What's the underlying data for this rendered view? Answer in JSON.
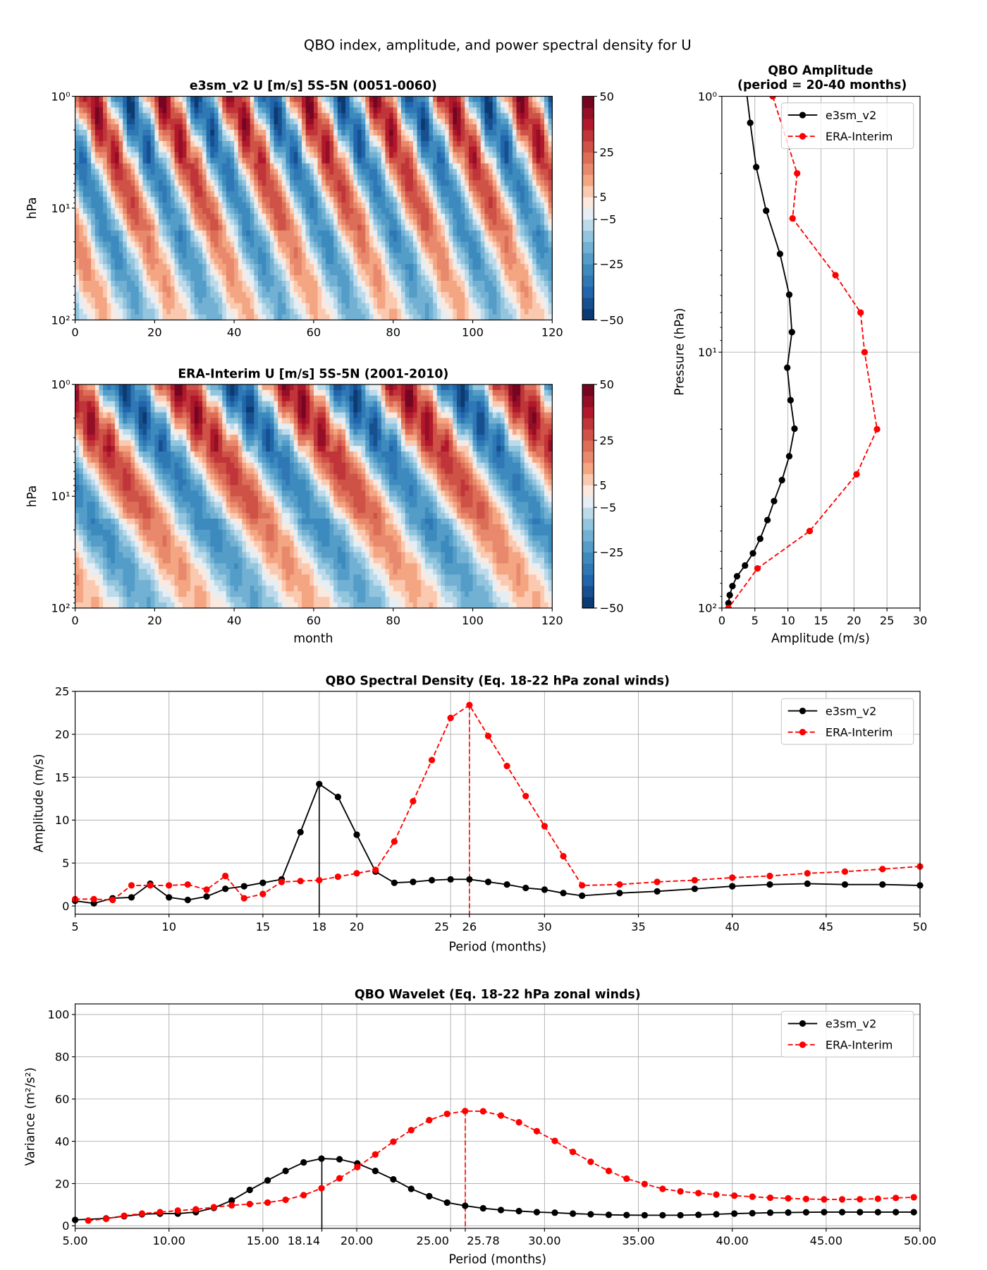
{
  "suptitle": "QBO index, amplitude, and power spectral density for U",
  "chart_data": [
    {
      "id": "e3sm_hov",
      "type": "heatmap",
      "title": "e3sm_v2 U [m/s] 5S-5N (0051-0060)",
      "xlabel": "",
      "ylabel": "hPa",
      "xlim": [
        0,
        120
      ],
      "ylim": [
        100,
        1
      ],
      "yscale": "log",
      "x_ticks": [
        "0",
        "20",
        "40",
        "60",
        "80",
        "100",
        "120"
      ],
      "y_ticks": [
        "10⁰",
        "10¹",
        "10²"
      ],
      "colorbar_ticks": [
        "50",
        "25",
        "5",
        "−5",
        "−25",
        "−50"
      ],
      "colorbar_range": [
        -50,
        50
      ],
      "colorbar_step": 5,
      "approx_period_months": 18
    },
    {
      "id": "era_hov",
      "type": "heatmap",
      "title": "ERA-Interim U [m/s] 5S-5N (2001-2010)",
      "xlabel": "month",
      "ylabel": "hPa",
      "xlim": [
        0,
        120
      ],
      "ylim": [
        100,
        1
      ],
      "yscale": "log",
      "x_ticks": [
        "0",
        "20",
        "40",
        "60",
        "80",
        "100",
        "120"
      ],
      "y_ticks": [
        "10⁰",
        "10¹",
        "10²"
      ],
      "colorbar_ticks": [
        "50",
        "25",
        "5",
        "−5",
        "−25",
        "−50"
      ],
      "colorbar_range": [
        -50,
        50
      ],
      "colorbar_step": 5,
      "approx_period_months": 28
    },
    {
      "id": "amplitude",
      "type": "line",
      "title_line1": "QBO Amplitude",
      "title_line2": "(period = 20-40 months)",
      "xlabel": "Amplitude (m/s)",
      "ylabel": "Pressure (hPa)",
      "xlim": [
        0,
        30
      ],
      "ylim": [
        100,
        1
      ],
      "yscale": "log",
      "x_ticks": [
        "0",
        "5",
        "10",
        "15",
        "20",
        "25",
        "30"
      ],
      "y_ticks": [
        "10⁰",
        "10¹",
        "10²"
      ],
      "legend": "top-right",
      "series": [
        {
          "name": "e3sm_v2",
          "color": "#000000",
          "style": "solid",
          "pressure": [
            1.27,
            1.89,
            2.8,
            4.13,
            5.96,
            8.35,
            11.5,
            15.4,
            19.9,
            25.5,
            31.6,
            38.2,
            45.3,
            53.6,
            61.1,
            68.2,
            75.1,
            82.0,
            89.0,
            95.7
          ],
          "amplitude": [
            4.3,
            5.2,
            6.7,
            8.8,
            10.2,
            10.6,
            9.9,
            10.4,
            11.0,
            10.2,
            9.1,
            7.9,
            6.9,
            5.8,
            4.7,
            3.5,
            2.3,
            1.6,
            1.2,
            1.0
          ]
        },
        {
          "name": "ERA-Interim",
          "color": "#ff0000",
          "style": "dashed",
          "pressure": [
            1,
            2,
            3,
            5,
            7,
            10,
            20,
            30,
            50,
            70,
            100
          ],
          "amplitude": [
            7.7,
            11.4,
            10.7,
            17.2,
            21.0,
            21.6,
            23.5,
            20.4,
            13.3,
            5.4,
            1.0
          ]
        }
      ]
    },
    {
      "id": "spectral",
      "type": "line",
      "title": "QBO Spectral Density (Eq. 18-22 hPa zonal winds)",
      "xlabel": "Period (months)",
      "ylabel": "Amplitude (m/s)",
      "xlim": [
        5,
        50
      ],
      "ylim": [
        -1,
        25
      ],
      "x_tick_values": [
        5,
        10,
        15,
        18,
        20,
        25,
        26,
        30,
        35,
        40,
        45,
        50
      ],
      "x_ticks": [
        "5",
        "10",
        "15",
        "18",
        "20",
        "25",
        "26",
        "30",
        "35",
        "40",
        "45",
        "50"
      ],
      "y_tick_values": [
        0,
        5,
        10,
        15,
        20,
        25
      ],
      "y_ticks": [
        "0",
        "5",
        "10",
        "15",
        "20",
        "25"
      ],
      "legend": "top-right",
      "peak_markers": [
        {
          "series": "e3sm_v2",
          "x": 18
        },
        {
          "series": "ERA-Interim",
          "x": 26
        }
      ],
      "x": [
        5,
        6,
        7,
        8,
        9,
        10,
        11,
        12,
        13,
        14,
        15,
        16,
        17,
        18,
        19,
        20,
        21,
        22,
        23,
        24,
        25,
        26,
        27,
        28,
        29,
        30,
        31,
        32,
        34,
        36,
        38,
        40,
        42,
        44,
        46,
        48,
        50
      ],
      "series": [
        {
          "name": "e3sm_v2",
          "color": "#000000",
          "style": "solid",
          "values": [
            0.6,
            0.3,
            0.9,
            1.0,
            2.6,
            1.0,
            0.7,
            1.1,
            2.0,
            2.3,
            2.7,
            3.1,
            8.6,
            14.2,
            12.7,
            8.3,
            4.0,
            2.7,
            2.8,
            3.0,
            3.1,
            3.1,
            2.8,
            2.5,
            2.1,
            1.9,
            1.5,
            1.2,
            1.5,
            1.7,
            2.0,
            2.3,
            2.5,
            2.6,
            2.5,
            2.5,
            2.4
          ]
        },
        {
          "name": "ERA-Interim",
          "color": "#ff0000",
          "style": "dashed",
          "values": [
            0.8,
            0.8,
            0.7,
            2.4,
            2.4,
            2.4,
            2.5,
            1.9,
            3.5,
            0.9,
            1.4,
            2.8,
            2.9,
            3.0,
            3.4,
            3.8,
            4.2,
            7.5,
            12.2,
            17.0,
            21.9,
            23.4,
            19.8,
            16.3,
            12.8,
            9.3,
            5.8,
            2.4,
            2.5,
            2.8,
            3.0,
            3.3,
            3.5,
            3.8,
            4.0,
            4.3,
            4.6
          ]
        }
      ]
    },
    {
      "id": "wavelet",
      "type": "line",
      "title": "QBO Wavelet (Eq. 18-22 hPa zonal winds)",
      "xlabel": "Period (months)",
      "ylabel": "Variance (m²/s²)",
      "xlim": [
        5,
        50
      ],
      "ylim": [
        -1,
        105
      ],
      "x_tick_values": [
        5,
        10,
        15,
        18.14,
        20,
        25,
        25.78,
        30,
        35,
        40,
        45,
        50
      ],
      "x_ticks": [
        "5.00",
        "10.00",
        "15.00",
        "18.14",
        "20.00",
        "25.00",
        "25.78",
        "30.00",
        "35.00",
        "40.00",
        "45.00",
        "50.00"
      ],
      "y_tick_values": [
        0,
        20,
        40,
        60,
        80,
        100
      ],
      "y_ticks": [
        "0",
        "20",
        "40",
        "60",
        "80",
        "100"
      ],
      "legend": "top-right",
      "peak_markers": [
        {
          "series": "e3sm_v2",
          "x": 18.14
        },
        {
          "series": "ERA-Interim",
          "x": 25.78
        }
      ],
      "series": [
        {
          "name": "e3sm_v2",
          "color": "#000000",
          "style": "solid",
          "x": [
            5.0,
            6.65,
            7.61,
            8.56,
            9.52,
            10.47,
            11.43,
            12.39,
            13.34,
            14.3,
            15.25,
            16.21,
            17.17,
            18.12,
            19.08,
            20.03,
            20.99,
            21.95,
            22.9,
            23.86,
            24.81,
            25.77,
            26.73,
            27.68,
            28.64,
            29.59,
            30.55,
            31.51,
            32.46,
            33.42,
            34.37,
            35.33,
            36.29,
            37.24,
            38.2,
            39.15,
            40.11,
            41.07,
            42.02,
            42.98,
            43.93,
            44.89,
            45.85,
            46.8,
            47.76,
            48.71,
            49.67
          ],
          "values": [
            2.8,
            3.5,
            4.5,
            5.5,
            5.8,
            5.8,
            6.5,
            8.5,
            12,
            17,
            21.5,
            26,
            30,
            31.8,
            31.5,
            29.5,
            26,
            22,
            17.5,
            14,
            11,
            9.5,
            8.3,
            7.5,
            7,
            6.5,
            6.2,
            5.8,
            5.5,
            5.2,
            5.1,
            5,
            5,
            5,
            5.2,
            5.5,
            5.8,
            6,
            6.2,
            6.3,
            6.4,
            6.5,
            6.5,
            6.5,
            6.5,
            6.5,
            6.5
          ]
        },
        {
          "name": "ERA-Interim",
          "color": "#ff0000",
          "style": "dashed",
          "x": [
            5.7,
            6.65,
            7.61,
            8.56,
            9.52,
            10.47,
            11.43,
            12.39,
            13.34,
            14.3,
            15.25,
            16.21,
            17.17,
            18.12,
            19.08,
            20.03,
            20.99,
            21.95,
            22.9,
            23.86,
            24.81,
            25.77,
            26.73,
            27.68,
            28.64,
            29.59,
            30.55,
            31.51,
            32.46,
            33.42,
            34.37,
            35.33,
            36.29,
            37.24,
            38.2,
            39.15,
            40.11,
            41.07,
            42.02,
            42.98,
            43.93,
            44.89,
            45.85,
            46.8,
            47.76,
            48.71,
            49.67
          ],
          "values": [
            2.5,
            3.3,
            4.8,
            5.8,
            6.5,
            7.2,
            7.8,
            8.8,
            9.7,
            10.3,
            11,
            12.3,
            14.5,
            17.8,
            22.5,
            27.8,
            33.8,
            39.8,
            45.3,
            50,
            53,
            54.3,
            54.2,
            52.2,
            49,
            44.8,
            40.2,
            35,
            30.3,
            26,
            22.3,
            19.8,
            17.5,
            16.3,
            15.5,
            14.8,
            14.3,
            13.8,
            13.3,
            13,
            12.7,
            12.5,
            12.5,
            12.6,
            12.8,
            13.2,
            13.5
          ]
        }
      ]
    }
  ]
}
